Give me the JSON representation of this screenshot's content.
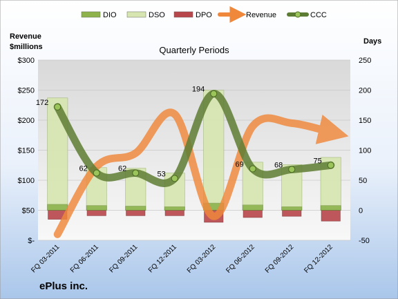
{
  "chart_data": {
    "type": "bar",
    "title": "Quarterly Periods",
    "company": "ePlus inc.",
    "left_axis_label_line1": "Revenue",
    "left_axis_label_line2": "$millions",
    "right_axis_label": "Days",
    "categories": [
      "FQ 03-2011",
      "FQ 06-2011",
      "FQ 09-2011",
      "FQ 12-2011",
      "FQ 03-2012",
      "FQ 06-2012",
      "FQ 09-2012",
      "FQ 12-2012"
    ],
    "left_axis": {
      "min": 0,
      "max": 300,
      "ticks": [
        0,
        50,
        100,
        150,
        200,
        250,
        300
      ],
      "tick_labels": [
        "$-",
        "$50",
        "$100",
        "$150",
        "$200",
        "$250",
        "$300"
      ]
    },
    "right_axis": {
      "min": -50,
      "max": 250,
      "ticks": [
        -50,
        0,
        50,
        100,
        150,
        200,
        250
      ],
      "tick_labels": [
        "-50",
        "0",
        "50",
        "100",
        "150",
        "200",
        "250"
      ]
    },
    "legend_position": "top",
    "series": [
      {
        "name": "DIO",
        "kind": "stacked-bar",
        "axis": "right",
        "color": "#8db34a",
        "values": [
          10,
          8,
          7,
          6,
          12,
          9,
          6,
          8
        ]
      },
      {
        "name": "DSO",
        "kind": "stacked-bar",
        "axis": "right",
        "color": "#d7e6b0",
        "values": [
          177,
          63,
          63,
          56,
          188,
          71,
          70,
          80
        ]
      },
      {
        "name": "DPO",
        "kind": "negative-bar",
        "axis": "right",
        "color": "#b8474b",
        "values": [
          -15,
          -9,
          -9,
          -9,
          -20,
          -12,
          -10,
          -18
        ]
      },
      {
        "name": "Revenue",
        "kind": "smooth-line",
        "axis": "left",
        "color": "#f0883b",
        "values": [
          10,
          123,
          145,
          210,
          40,
          190,
          195,
          180
        ]
      },
      {
        "name": "CCC",
        "kind": "smooth-line",
        "axis": "right",
        "color": "#5e7d34",
        "values": [
          172,
          62,
          62,
          53,
          194,
          69,
          68,
          75
        ]
      }
    ],
    "ccc_labels": [
      "172",
      "62",
      "62",
      "53",
      "194",
      "69",
      "68",
      "75"
    ]
  }
}
